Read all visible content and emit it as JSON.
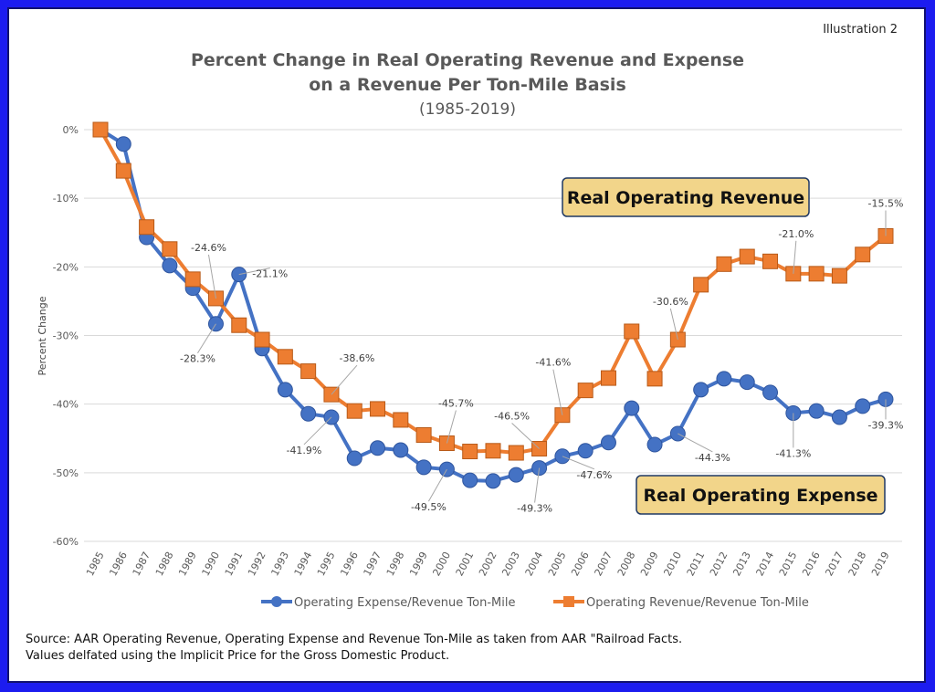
{
  "illustration_label": "Illustration 2",
  "source_lines": [
    "Source: AAR Operating Revenue, Operating Expense and Revenue Ton-Mile as taken from AAR \"Railroad Facts.",
    "Values delfated using the Implicit Price for the Gross Domestic Product."
  ],
  "chart_data": {
    "type": "line",
    "title": "Percent Change in Real Operating Revenue and Expense",
    "title_line2": "on a Revenue Per Ton-Mile Basis",
    "subtitle": "(1985-2019)",
    "xlabel": "",
    "ylabel": "Percent Change",
    "ylim": [
      -60,
      0
    ],
    "yticks": [
      0,
      -10,
      -20,
      -30,
      -40,
      -50,
      -60
    ],
    "ytick_labels": [
      "0%",
      "-10%",
      "-20%",
      "-30%",
      "-40%",
      "-50%",
      "-60%"
    ],
    "grid": true,
    "legend_position": "bottom",
    "x": [
      "1985",
      "1986",
      "1987",
      "1988",
      "1989",
      "1990",
      "1991",
      "1992",
      "1993",
      "1994",
      "1995",
      "1996",
      "1997",
      "1998",
      "1999",
      "2000",
      "2001",
      "2002",
      "2003",
      "2004",
      "2005",
      "2006",
      "2007",
      "2008",
      "2009",
      "2010",
      "2011",
      "2012",
      "2013",
      "2014",
      "2015",
      "2016",
      "2017",
      "2018",
      "2019"
    ],
    "series": [
      {
        "name": "Operating Expense/Revenue Ton-Mile",
        "color": "#4472c4",
        "marker": "circle",
        "values": [
          0,
          -2.1,
          -15.7,
          -19.8,
          -23.1,
          -28.3,
          -21.1,
          -31.9,
          -37.9,
          -41.4,
          -41.9,
          -47.9,
          -46.4,
          -46.7,
          -49.2,
          -49.5,
          -51.1,
          -51.2,
          -50.3,
          -49.3,
          -47.6,
          -46.8,
          -45.6,
          -40.6,
          -45.9,
          -44.3,
          -37.9,
          -36.3,
          -36.8,
          -38.3,
          -41.3,
          -41.0,
          -41.9,
          -40.3,
          -39.3
        ]
      },
      {
        "name": "Operating Revenue/Revenue Ton-Mile",
        "color": "#ed7d31",
        "marker": "square",
        "values": [
          0,
          -6.0,
          -14.2,
          -17.4,
          -21.8,
          -24.6,
          -28.5,
          -30.6,
          -33.1,
          -35.2,
          -38.6,
          -41.0,
          -40.7,
          -42.3,
          -44.5,
          -45.7,
          -46.9,
          -46.8,
          -47.1,
          -46.5,
          -41.6,
          -38.0,
          -36.2,
          -29.4,
          -36.3,
          -30.6,
          -22.6,
          -19.6,
          -18.5,
          -19.2,
          -21.0,
          -21.0,
          -21.3,
          -18.2,
          -15.5
        ]
      }
    ],
    "data_labels": [
      {
        "series": 0,
        "year": "1990",
        "text": "-28.3%"
      },
      {
        "series": 0,
        "year": "1991",
        "text": "-21.1%"
      },
      {
        "series": 0,
        "year": "1995",
        "text": "-41.9%"
      },
      {
        "series": 0,
        "year": "2000",
        "text": "-49.5%"
      },
      {
        "series": 0,
        "year": "2004",
        "text": "-49.3%"
      },
      {
        "series": 0,
        "year": "2005",
        "text": "-47.6%"
      },
      {
        "series": 0,
        "year": "2010",
        "text": "-44.3%"
      },
      {
        "series": 0,
        "year": "2015",
        "text": "-41.3%"
      },
      {
        "series": 0,
        "year": "2019",
        "text": "-39.3%"
      },
      {
        "series": 1,
        "year": "1990",
        "text": "-24.6%"
      },
      {
        "series": 1,
        "year": "1995",
        "text": "-38.6%"
      },
      {
        "series": 1,
        "year": "2000",
        "text": "-45.7%"
      },
      {
        "series": 1,
        "year": "2004",
        "text": "-46.5%"
      },
      {
        "series": 1,
        "year": "2005",
        "text": "-41.6%"
      },
      {
        "series": 1,
        "year": "2010",
        "text": "-30.6%"
      },
      {
        "series": 1,
        "year": "2015",
        "text": "-21.0%"
      },
      {
        "series": 1,
        "year": "2019",
        "text": "-15.5%"
      }
    ],
    "annotations": [
      {
        "text": "Real Operating Revenue",
        "fill": "#f2d58a"
      },
      {
        "text": "Real Operating Expense",
        "fill": "#f2d58a"
      }
    ]
  }
}
